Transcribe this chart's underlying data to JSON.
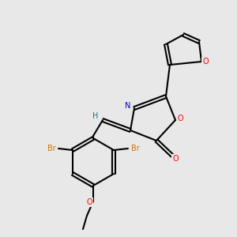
{
  "background_color": "#e8e8e8",
  "bond_color": "#000000",
  "atom_colors": {
    "O": "#ff0000",
    "N": "#0000cc",
    "Br": "#cc7700",
    "H": "#008080"
  },
  "figsize": [
    3.0,
    3.0
  ],
  "dpi": 100
}
